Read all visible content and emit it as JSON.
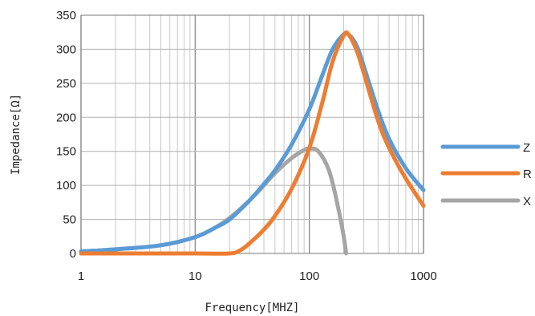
{
  "chart_data": {
    "type": "line",
    "title": "",
    "xlabel": "Frequency[MHZ]",
    "ylabel": "Impedance[Ω]",
    "x_scale": "log",
    "xlim": [
      1,
      1000
    ],
    "ylim": [
      0,
      350
    ],
    "x_ticks": [
      "1",
      "10",
      "100",
      "1000"
    ],
    "y_ticks": [
      "0",
      "50",
      "100",
      "150",
      "200",
      "250",
      "300",
      "350"
    ],
    "grid": true,
    "legend_position": "right",
    "series": [
      {
        "name": "Z",
        "color": "#5b9bd5",
        "x": [
          1,
          2,
          5,
          10,
          15,
          20,
          30,
          40,
          50,
          70,
          100,
          130,
          160,
          200,
          220,
          260,
          300,
          400,
          500,
          700,
          1000
        ],
        "y": [
          3,
          6,
          12,
          24,
          38,
          50,
          78,
          102,
          122,
          160,
          212,
          262,
          300,
          322,
          322,
          305,
          275,
          210,
          168,
          125,
          93
        ]
      },
      {
        "name": "R",
        "color": "#ed7d31",
        "x": [
          1,
          5,
          10,
          20,
          25,
          30,
          40,
          50,
          70,
          100,
          130,
          160,
          200,
          220,
          260,
          300,
          400,
          500,
          700,
          1000
        ],
        "y": [
          0,
          0,
          0,
          0,
          5,
          15,
          35,
          55,
          95,
          155,
          222,
          282,
          320,
          322,
          298,
          265,
          195,
          155,
          110,
          70
        ]
      },
      {
        "name": "X",
        "color": "#a5a5a5",
        "x": [
          1,
          2,
          5,
          10,
          15,
          20,
          30,
          40,
          50,
          70,
          90,
          100,
          120,
          150,
          180,
          200,
          210
        ],
        "y": [
          3,
          6,
          12,
          24,
          38,
          52,
          78,
          100,
          118,
          140,
          152,
          154,
          150,
          120,
          65,
          25,
          0
        ]
      }
    ]
  }
}
